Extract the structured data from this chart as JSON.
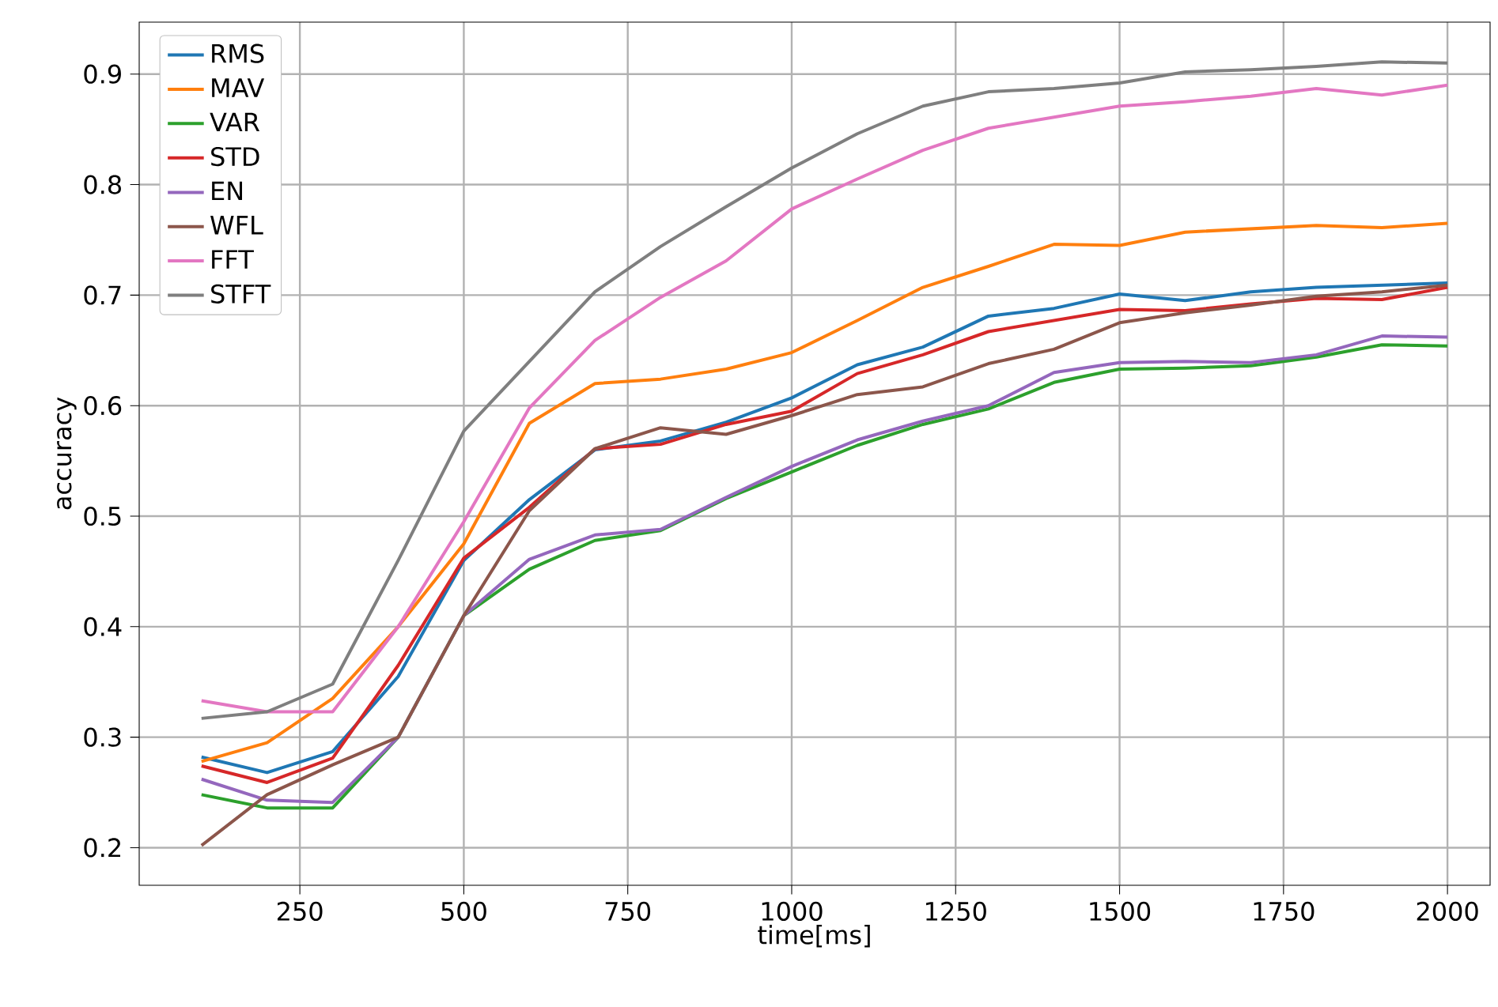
{
  "chart_data": {
    "type": "line",
    "xlabel": "time[ms]",
    "ylabel": "accuracy",
    "x": [
      100,
      200,
      300,
      400,
      500,
      600,
      700,
      800,
      900,
      1000,
      1100,
      1200,
      1300,
      1400,
      1500,
      1600,
      1700,
      1800,
      1900,
      2000
    ],
    "series": [
      {
        "name": "RMS",
        "color": "#1f77b4",
        "values": [
          0.282,
          0.268,
          0.287,
          0.355,
          0.46,
          0.515,
          0.56,
          0.568,
          0.585,
          0.607,
          0.637,
          0.653,
          0.681,
          0.688,
          0.701,
          0.695,
          0.703,
          0.707,
          0.709,
          0.711
        ]
      },
      {
        "name": "MAV",
        "color": "#ff7f0e",
        "values": [
          0.278,
          0.295,
          0.335,
          0.4,
          0.475,
          0.584,
          0.62,
          0.624,
          0.633,
          0.648,
          0.677,
          0.707,
          0.726,
          0.746,
          0.745,
          0.757,
          0.76,
          0.763,
          0.761,
          0.765
        ]
      },
      {
        "name": "VAR",
        "color": "#2ca02c",
        "values": [
          0.248,
          0.236,
          0.236,
          0.3,
          0.41,
          0.452,
          0.478,
          0.487,
          0.516,
          0.54,
          0.564,
          0.583,
          0.597,
          0.621,
          0.633,
          0.634,
          0.636,
          0.644,
          0.655,
          0.654
        ]
      },
      {
        "name": "STD",
        "color": "#d62728",
        "values": [
          0.274,
          0.259,
          0.281,
          0.365,
          0.462,
          0.508,
          0.561,
          0.565,
          0.583,
          0.595,
          0.629,
          0.646,
          0.667,
          0.677,
          0.687,
          0.686,
          0.692,
          0.697,
          0.696,
          0.707
        ]
      },
      {
        "name": "EN",
        "color": "#9467bd",
        "values": [
          0.262,
          0.243,
          0.241,
          0.3,
          0.41,
          0.461,
          0.483,
          0.488,
          0.517,
          0.545,
          0.569,
          0.586,
          0.6,
          0.63,
          0.639,
          0.64,
          0.639,
          0.646,
          0.663,
          0.662
        ]
      },
      {
        "name": "WFL",
        "color": "#8c564b",
        "values": [
          0.202,
          0.248,
          0.275,
          0.3,
          0.41,
          0.505,
          0.561,
          0.58,
          0.574,
          0.591,
          0.61,
          0.617,
          0.638,
          0.651,
          0.675,
          0.684,
          0.691,
          0.699,
          0.703,
          0.709
        ]
      },
      {
        "name": "FFT",
        "color": "#e377c2",
        "values": [
          0.333,
          0.323,
          0.323,
          0.4,
          0.495,
          0.598,
          0.659,
          0.698,
          0.731,
          0.778,
          0.805,
          0.831,
          0.851,
          0.861,
          0.871,
          0.875,
          0.88,
          0.887,
          0.881,
          0.89
        ]
      },
      {
        "name": "STFT",
        "color": "#7f7f7f",
        "values": [
          0.317,
          0.323,
          0.348,
          0.46,
          0.577,
          0.64,
          0.703,
          0.744,
          0.78,
          0.815,
          0.846,
          0.871,
          0.884,
          0.887,
          0.892,
          0.902,
          0.904,
          0.907,
          0.911,
          0.91
        ]
      }
    ],
    "xlim": [
      5,
      2065
    ],
    "ylim": [
      0.166,
      0.947
    ],
    "xticks": [
      250,
      500,
      750,
      1000,
      1250,
      1500,
      1750,
      2000
    ],
    "yticks": [
      0.2,
      0.3,
      0.4,
      0.5,
      0.6,
      0.7,
      0.8,
      0.9
    ],
    "grid": true,
    "legend": "top left",
    "marker": "none",
    "line_style": "solid"
  }
}
